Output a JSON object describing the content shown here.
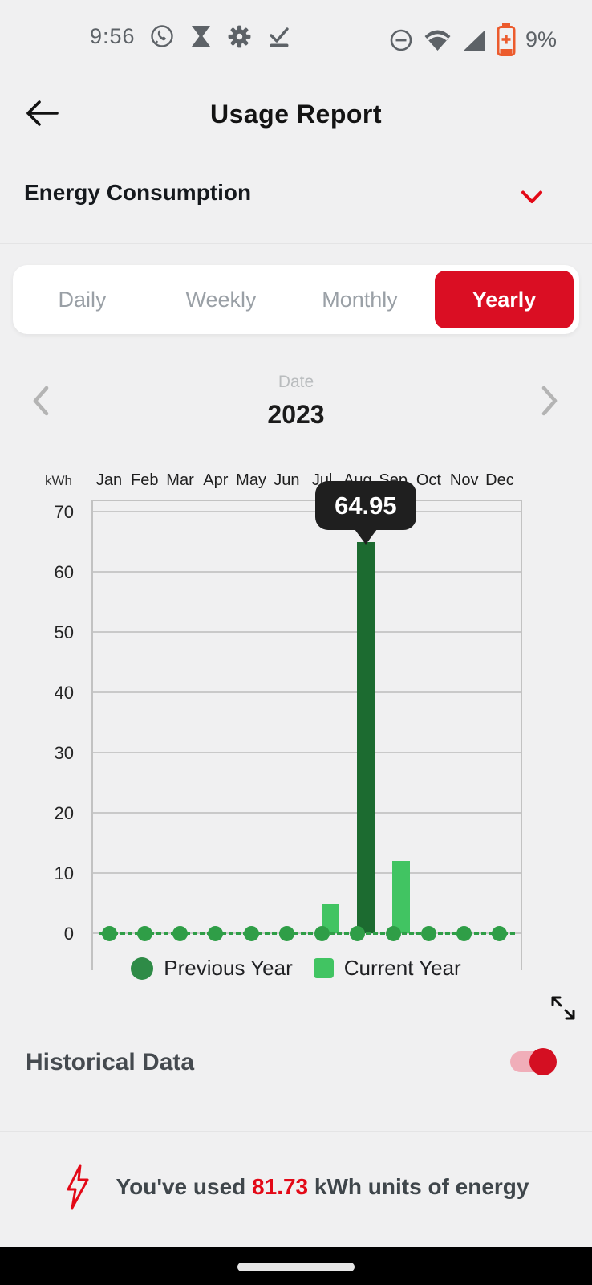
{
  "status_bar": {
    "time": "9:56",
    "left_icons": [
      "whatsapp-icon",
      "hourglass-icon",
      "settings-icon",
      "update-done-icon"
    ],
    "right_icons": [
      "do-not-disturb-icon",
      "wifi-icon",
      "cell-signal-icon",
      "battery-saver-icon"
    ],
    "battery_percent": "9%"
  },
  "header": {
    "title": "Usage Report",
    "back_icon": "arrow-left"
  },
  "section": {
    "title": "Energy Consumption",
    "chevron_color": "#e30917"
  },
  "tabs": [
    {
      "label": "Daily",
      "active": false
    },
    {
      "label": "Weekly",
      "active": false
    },
    {
      "label": "Monthly",
      "active": false
    },
    {
      "label": "Yearly",
      "active": true
    }
  ],
  "date_nav": {
    "label": "Date",
    "value": "2023"
  },
  "chart_data": {
    "type": "bar",
    "unit_label": "kWh",
    "categories": [
      "Jan",
      "Feb",
      "Mar",
      "Apr",
      "May",
      "Jun",
      "Jul",
      "Aug",
      "Sep",
      "Oct",
      "Nov",
      "Dec"
    ],
    "series": [
      {
        "name": "Previous Year",
        "swatch": "circle",
        "color": "#2e8b47",
        "bar_color": "#1c6b30",
        "point_color": "#2f9e47",
        "line": "dashed-at-zero",
        "values": [
          0,
          0,
          0,
          0,
          0,
          0,
          0,
          64.95,
          0,
          0,
          0,
          0
        ]
      },
      {
        "name": "Current Year",
        "swatch": "square",
        "color": "#41c462",
        "bar_color": "#41c462",
        "values": [
          0,
          0,
          0,
          0,
          0,
          0,
          5,
          0,
          12,
          0,
          0,
          0
        ]
      }
    ],
    "yticks": [
      0,
      10,
      20,
      30,
      40,
      50,
      60,
      70
    ],
    "ylim": [
      0,
      70
    ],
    "grid": true,
    "legend_position": "bottom",
    "tooltip": {
      "category": "Aug",
      "value": "64.95"
    }
  },
  "historical": {
    "label": "Historical Data",
    "enabled": true
  },
  "usage_note": {
    "prefix": "You've used ",
    "highlight": "81.73",
    "suffix": " kWh units of energy"
  },
  "colors": {
    "accent_red": "#e30917",
    "tab_active_red": "#da0e23",
    "toggle_red": "#d40f22",
    "toggle_track_pink": "#f0aeb9",
    "previous_year_green": "#1c6b30",
    "current_year_green": "#41c462",
    "point_green": "#2f9e47",
    "status_icon_gray": "#5d6267",
    "battery_saver_orange": "#ec5b2d"
  }
}
